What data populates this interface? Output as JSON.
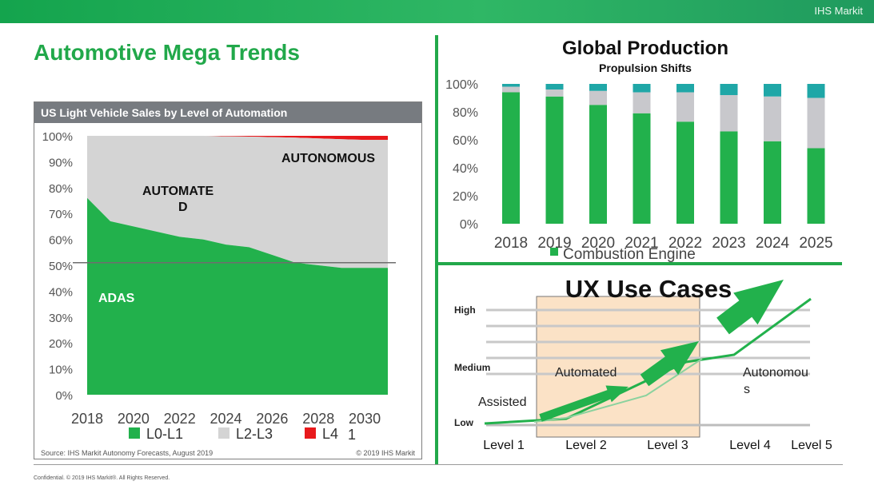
{
  "brand": "IHS Markit",
  "page_title": "Automotive Mega Trends",
  "footer": "Confidential. © 2019 IHS Markit®. All Rights Reserved.",
  "chart_data": [
    {
      "type": "area",
      "title": "US Light Vehicle Sales by Level of Automation",
      "x": [
        2018,
        2019,
        2020,
        2021,
        2022,
        2023,
        2024,
        2025,
        2026,
        2027,
        2028,
        2029,
        2030,
        2031
      ],
      "x_tick_labels": [
        "2018",
        "2020",
        "2022",
        "2024",
        "2026",
        "2028",
        "2030"
      ],
      "y_tick_labels": [
        "0%",
        "10%",
        "20%",
        "30%",
        "40%",
        "50%",
        "60%",
        "70%",
        "80%",
        "90%",
        "100%"
      ],
      "ylim": [
        0,
        100
      ],
      "series": [
        {
          "name": "L0-L1",
          "color": "#22b14c",
          "values": [
            76,
            67,
            65,
            63,
            61,
            60,
            58,
            57,
            54,
            51,
            50,
            49,
            49,
            49
          ]
        },
        {
          "name": "L2-L3",
          "color": "#d4d4d4",
          "values": [
            24,
            33,
            35,
            37,
            39,
            40,
            41.8,
            42.7,
            45.5,
            48.3,
            49,
            49.7,
            49.4,
            49.4
          ]
        },
        {
          "name": "L4",
          "color": "#e8191c",
          "values": [
            0,
            0,
            0,
            0,
            0,
            0,
            0.2,
            0.3,
            0.5,
            0.7,
            1.0,
            1.3,
            1.6,
            1.6
          ]
        }
      ],
      "reference_line": 51,
      "annotations": [
        "ADAS",
        "AUTOMATE",
        "D",
        "AUTONOMOUS"
      ],
      "legend_extra": "1",
      "source": "Source: IHS Markit Autonomy Forecasts, August 2019",
      "copyright": "© 2019 IHS Markit"
    },
    {
      "type": "bar",
      "title": "Global Production",
      "subtitle": "Propulsion Shifts",
      "categories": [
        "2018",
        "2019",
        "2020",
        "2021",
        "2022",
        "2023",
        "2024",
        "2025"
      ],
      "y_tick_labels": [
        "0%",
        "20%",
        "40%",
        "60%",
        "80%",
        "100%"
      ],
      "ylim": [
        0,
        100
      ],
      "stacked": true,
      "series": [
        {
          "name": "Combustion Engine",
          "color": "#22b14c",
          "values": [
            94,
            91,
            85,
            79,
            73,
            66,
            59,
            54
          ]
        },
        {
          "color": "#c8c8cc",
          "values": [
            4,
            5,
            10,
            15,
            21,
            26,
            32,
            36
          ]
        },
        {
          "color": "#1fa7a7",
          "values": [
            2,
            4,
            5,
            6,
            6,
            8,
            9,
            10
          ]
        }
      ]
    },
    {
      "type": "line",
      "title": "UX Use Cases",
      "categories": [
        "Level 1",
        "Level 2",
        "Level 3",
        "Level 4",
        "Level 5"
      ],
      "y_labels": [
        "Low",
        "Medium",
        "High"
      ],
      "zone_labels": [
        "Assisted",
        "Automated",
        "Autonomou",
        "s"
      ],
      "line_color": "#22b14c"
    }
  ]
}
